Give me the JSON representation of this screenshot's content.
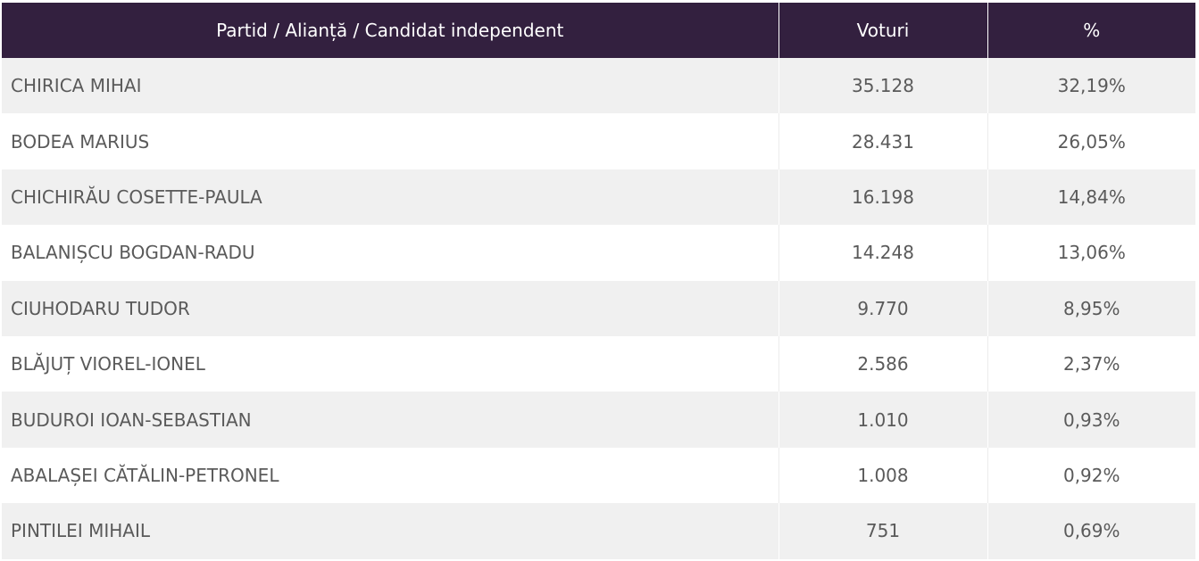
{
  "header": {
    "name_label": "Partid / Alianță / Candidat independent",
    "votes_label": "Voturi",
    "percent_label": "%"
  },
  "rows": [
    {
      "name": "CHIRICA MIHAI",
      "votes": "35.128",
      "percent": "32,19%"
    },
    {
      "name": "BODEA MARIUS",
      "votes": "28.431",
      "percent": "26,05%"
    },
    {
      "name": "CHICHIRĂU COSETTE-PAULA",
      "votes": "16.198",
      "percent": "14,84%"
    },
    {
      "name": "BALANIȘCU BOGDAN-RADU",
      "votes": "14.248",
      "percent": "13,06%"
    },
    {
      "name": "CIUHODARU TUDOR",
      "votes": "9.770",
      "percent": "8,95%"
    },
    {
      "name": "BLĂJUȚ VIOREL-IONEL",
      "votes": "2.586",
      "percent": "2,37%"
    },
    {
      "name": "BUDUROI IOAN-SEBASTIAN",
      "votes": "1.010",
      "percent": "0,93%"
    },
    {
      "name": "ABALAȘEI CĂTĂLIN-PETRONEL",
      "votes": "1.008",
      "percent": "0,92%"
    },
    {
      "name": "PINTILEI MIHAIL",
      "votes": "751",
      "percent": "0,69%"
    }
  ],
  "colors": {
    "header_bg": "#33203f",
    "row_alt_bg": "#f0f0f0",
    "text": "#5a5a5a"
  }
}
